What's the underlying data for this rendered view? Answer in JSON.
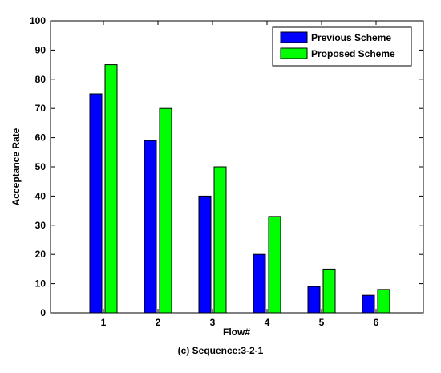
{
  "chart_data": {
    "type": "bar",
    "categories": [
      "1",
      "2",
      "3",
      "4",
      "5",
      "6"
    ],
    "series": [
      {
        "name": "Previous Scheme",
        "color": "#0000ff",
        "values": [
          75,
          59,
          40,
          20,
          9,
          6
        ]
      },
      {
        "name": "Proposed Scheme",
        "color": "#00ff00",
        "values": [
          85,
          70,
          50,
          33,
          15,
          8
        ]
      }
    ],
    "xlabel": "Flow#",
    "ylabel": "Acceptance Rate",
    "ylim": [
      0,
      100
    ],
    "yticks": [
      0,
      10,
      20,
      30,
      40,
      50,
      60,
      70,
      80,
      90,
      100
    ],
    "legend_position": "top-right",
    "grid": false
  },
  "caption": "(c) Sequence:3-2-1"
}
